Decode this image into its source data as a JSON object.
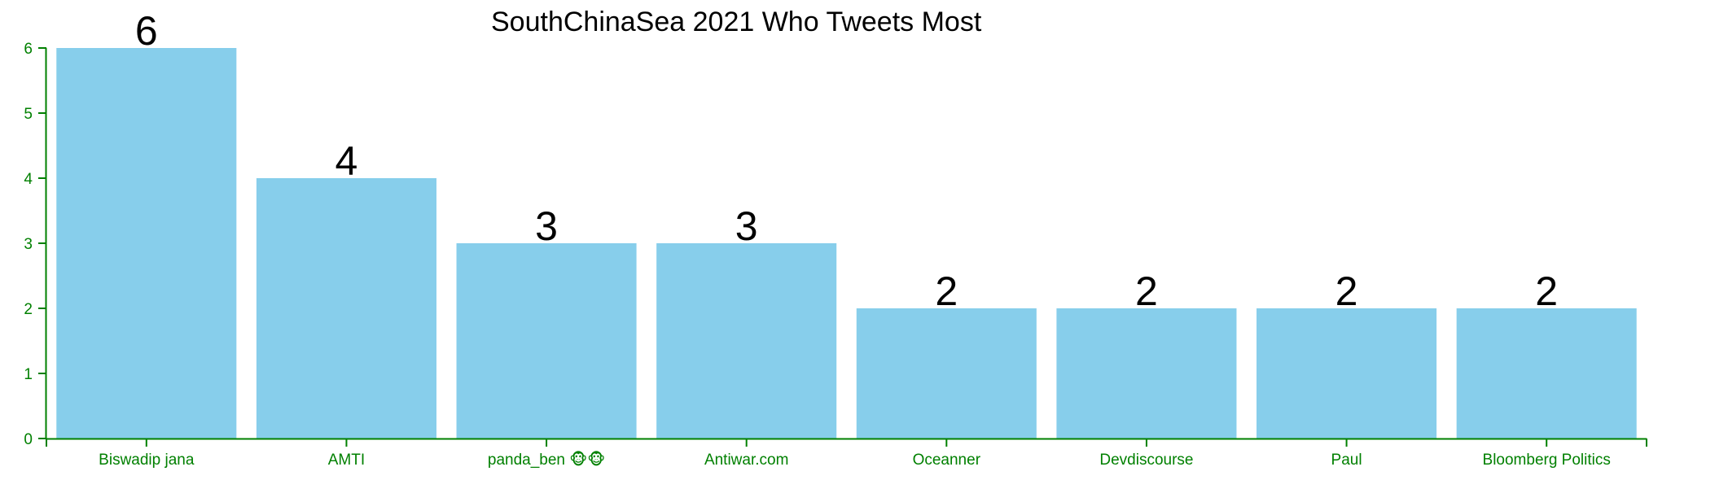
{
  "chart_data": {
    "type": "bar",
    "title": "SouthChinaSea 2021 Who Tweets Most",
    "xlabel": "",
    "ylabel": "",
    "categories": [
      "Biswadip jana",
      "AMTI",
      "panda_ben 🐵🐵",
      "Antiwar.com",
      "Oceanner",
      "Devdiscourse",
      "Paul",
      "Bloomberg Politics"
    ],
    "values": [
      6,
      4,
      3,
      3,
      2,
      2,
      2,
      2
    ],
    "ylim": [
      0,
      6
    ],
    "yticks": [
      "0",
      "1",
      "2",
      "3",
      "4",
      "5",
      "6"
    ],
    "grid": false,
    "legend": "none",
    "colors": {
      "bar": "#87ceeb",
      "axis": "#008000",
      "value_label": "#000000",
      "title": "#000000"
    }
  }
}
